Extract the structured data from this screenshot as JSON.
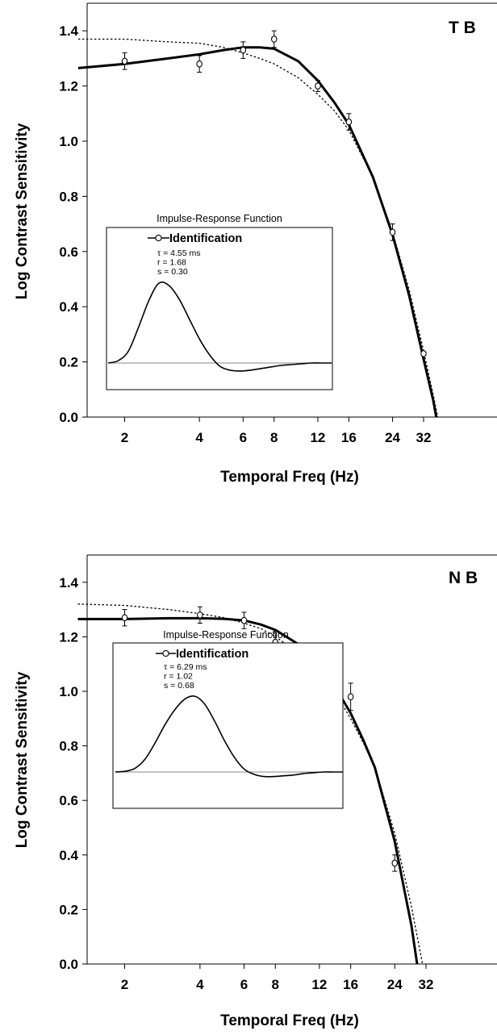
{
  "chart_data": [
    {
      "type": "line",
      "panel_label": "T B",
      "xlabel": "Temporal Freq (Hz)",
      "ylabel": "Log Contrast Sensitivity",
      "xscale": "log",
      "xticks": [
        2,
        4,
        6,
        8,
        12,
        16,
        24,
        32
      ],
      "xtick_labels": [
        "2",
        "4",
        "6",
        "8",
        "12",
        "16",
        "24",
        "32"
      ],
      "yticks": [
        0.0,
        0.2,
        0.4,
        0.6,
        0.8,
        1.0,
        1.2,
        1.4
      ],
      "ytick_labels": [
        "0.0",
        "0.2",
        "0.4",
        "0.6",
        "0.8",
        "1.0",
        "1.2",
        "1.4"
      ],
      "ylim": [
        0.0,
        1.5
      ],
      "series": [
        {
          "style": "points-with-error-bars",
          "marker": "open-circle",
          "x": [
            2,
            4,
            6,
            8,
            12,
            16,
            24,
            32
          ],
          "y": [
            1.29,
            1.28,
            1.33,
            1.37,
            1.2,
            1.07,
            0.67,
            0.23
          ],
          "err": [
            0.03,
            0.03,
            0.03,
            0.03,
            0.02,
            0.03,
            0.03,
            0.0
          ]
        },
        {
          "style": "solid-thick",
          "x": [
            1.3,
            2,
            3,
            4,
            5,
            6,
            7,
            8,
            10,
            12,
            14,
            16,
            20,
            24,
            28,
            32,
            35,
            36
          ],
          "y": [
            1.265,
            1.28,
            1.3,
            1.315,
            1.33,
            1.34,
            1.34,
            1.335,
            1.29,
            1.22,
            1.14,
            1.06,
            0.87,
            0.66,
            0.44,
            0.21,
            0.06,
            0.0
          ]
        },
        {
          "style": "dotted",
          "x": [
            1.3,
            2,
            3,
            4,
            5,
            6,
            7,
            8,
            10,
            12,
            14,
            16,
            20,
            24,
            28,
            32,
            35,
            36.5
          ],
          "y": [
            1.37,
            1.37,
            1.36,
            1.355,
            1.34,
            1.32,
            1.3,
            1.28,
            1.23,
            1.17,
            1.11,
            1.04,
            0.87,
            0.67,
            0.46,
            0.24,
            0.08,
            0.0
          ]
        }
      ],
      "inset": {
        "title": "Impulse-Response Function",
        "legend": "Identification",
        "params": [
          "τ = 4.55 ms",
          "r = 1.68",
          "s = 0.30"
        ],
        "curve": [
          0.0,
          0.03,
          0.15,
          0.45,
          0.78,
          1.0,
          0.97,
          0.8,
          0.55,
          0.3,
          0.1,
          -0.04,
          -0.09,
          -0.1,
          -0.09,
          -0.07,
          -0.05,
          -0.03,
          -0.02,
          -0.01,
          0.0,
          0.0,
          0.0
        ]
      }
    },
    {
      "type": "line",
      "panel_label": "N B",
      "xlabel": "Temporal Freq (Hz)",
      "ylabel": "Log Contrast Sensitivity",
      "xscale": "log",
      "xticks": [
        2,
        4,
        6,
        8,
        12,
        16,
        24,
        32
      ],
      "xtick_labels": [
        "2",
        "4",
        "6",
        "8",
        "12",
        "16",
        "24",
        "32"
      ],
      "yticks": [
        0.0,
        0.2,
        0.4,
        0.6,
        0.8,
        1.0,
        1.2,
        1.4
      ],
      "ytick_labels": [
        "0.0",
        "0.2",
        "0.4",
        "0.6",
        "0.8",
        "1.0",
        "1.2",
        "1.4"
      ],
      "ylim": [
        0.0,
        1.5
      ],
      "series": [
        {
          "style": "points-with-error-bars",
          "marker": "open-circle",
          "x": [
            2,
            4,
            6,
            8,
            12,
            16,
            24
          ],
          "y": [
            1.27,
            1.28,
            1.26,
            1.18,
            1.11,
            0.98,
            0.37
          ],
          "err": [
            0.03,
            0.03,
            0.03,
            0.04,
            0.03,
            0.05,
            0.03
          ]
        },
        {
          "style": "solid-thick",
          "x": [
            1.3,
            2,
            3,
            4,
            5,
            6,
            7,
            8,
            10,
            12,
            14,
            16,
            18,
            20,
            24,
            28,
            29.5
          ],
          "y": [
            1.265,
            1.265,
            1.268,
            1.268,
            1.266,
            1.26,
            1.245,
            1.225,
            1.17,
            1.1,
            1.01,
            0.92,
            0.82,
            0.72,
            0.45,
            0.14,
            0.0
          ]
        },
        {
          "style": "dotted",
          "x": [
            1.3,
            2,
            3,
            4,
            5,
            6,
            7,
            8,
            10,
            12,
            14,
            16,
            18,
            20,
            24,
            28,
            31
          ],
          "y": [
            1.32,
            1.315,
            1.3,
            1.285,
            1.27,
            1.25,
            1.23,
            1.2,
            1.14,
            1.07,
            0.99,
            0.9,
            0.81,
            0.72,
            0.48,
            0.21,
            0.0
          ]
        }
      ],
      "inset": {
        "title": "Impulse-Response Function",
        "legend": "Identification",
        "params": [
          "τ = 6.29 ms",
          "r = 1.02",
          "s = 0.68"
        ],
        "curve": [
          0.0,
          0.01,
          0.05,
          0.17,
          0.38,
          0.62,
          0.82,
          0.96,
          1.0,
          0.9,
          0.68,
          0.42,
          0.2,
          0.04,
          -0.03,
          -0.06,
          -0.06,
          -0.05,
          -0.04,
          -0.02,
          -0.01,
          0.0,
          0.0,
          0.0
        ]
      }
    }
  ]
}
